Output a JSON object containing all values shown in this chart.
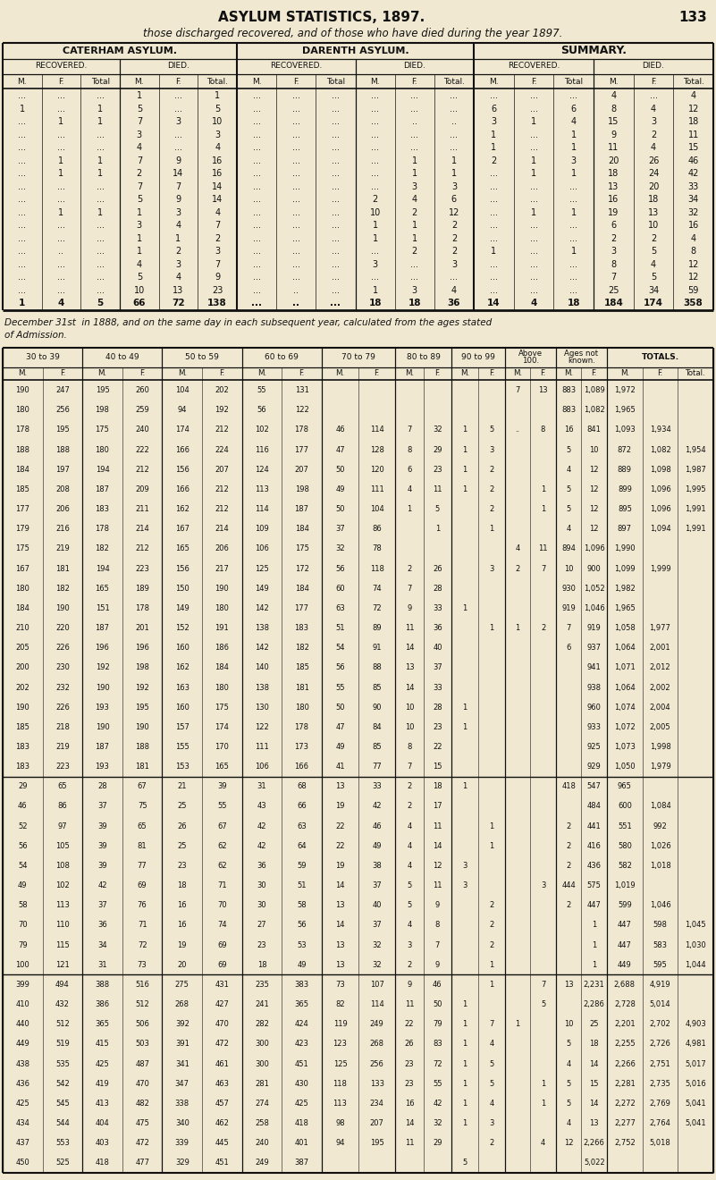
{
  "title": "ASYLUM STATISTICS, 1897.",
  "page_number": "133",
  "subtitle": "those discharged recovered, and of those who have died during the year 1897.",
  "section1_header": "CATERHAM ASYLUM.",
  "section2_header": "DARENTH ASYLUM.",
  "section3_header": "SUMMARY.",
  "top_table_rows": [
    [
      "...",
      "...",
      "...",
      "1",
      "...",
      "1",
      "...",
      "...",
      "...",
      "...",
      "...",
      "...",
      "...",
      "...",
      "...",
      "4",
      "...",
      "4"
    ],
    [
      "1",
      "...",
      "1",
      "5",
      "...",
      "5",
      "...",
      "...",
      "...",
      "...",
      "...",
      "...",
      "6",
      "...",
      "6",
      "8",
      "4",
      "12"
    ],
    [
      "...",
      "1",
      "1",
      "7",
      "3",
      "10",
      "...",
      "...",
      "...",
      "...",
      "..",
      "..",
      "3",
      "1",
      "4",
      "15",
      "3",
      "18"
    ],
    [
      "...",
      "...",
      "...",
      "3",
      "...",
      "3",
      "...",
      "...",
      "...",
      "...",
      "...",
      "...",
      "1",
      "...",
      "1",
      "9",
      "2",
      "11"
    ],
    [
      "...",
      "...",
      "...",
      "4",
      "...",
      "4",
      "...",
      "...",
      "...",
      "...",
      "...",
      "...",
      "1",
      "...",
      "1",
      "11",
      "4",
      "15"
    ],
    [
      "...",
      "1",
      "1",
      "7",
      "9",
      "16",
      "...",
      "...",
      "...",
      "...",
      "1",
      "1",
      "2",
      "1",
      "3",
      "20",
      "26",
      "46"
    ],
    [
      "...",
      "1",
      "1",
      "2",
      "14",
      "16",
      "...",
      "...",
      "...",
      "...",
      "1",
      "1",
      "...",
      "1",
      "1",
      "18",
      "24",
      "42"
    ],
    [
      "...",
      "...",
      "...",
      "7",
      "7",
      "14",
      "...",
      "...",
      "...",
      "...",
      "3",
      "3",
      "...",
      "...",
      "...",
      "13",
      "20",
      "33"
    ],
    [
      "...",
      "...",
      "...",
      "5",
      "9",
      "14",
      "...",
      "...",
      "...",
      "2",
      "4",
      "6",
      "...",
      "...",
      "...",
      "16",
      "18",
      "34"
    ],
    [
      "...",
      "1",
      "1",
      "1",
      "3",
      "4",
      "...",
      "...",
      "...",
      "10",
      "2",
      "12",
      "...",
      "1",
      "1",
      "19",
      "13",
      "32"
    ],
    [
      "...",
      "...",
      "...",
      "3",
      "4",
      "7",
      "...",
      "...",
      "...",
      "1",
      "1",
      "2",
      "...",
      "...",
      "...",
      "6",
      "10",
      "16"
    ],
    [
      "...",
      "...",
      "...",
      "1",
      "1",
      "2",
      "...",
      "...",
      "...",
      "1",
      "1",
      "2",
      "...",
      "...",
      "...",
      "2",
      "2",
      "4"
    ],
    [
      "...",
      "..",
      "...",
      "1",
      "2",
      "3",
      "...",
      "...",
      "...",
      "...",
      "2",
      "2",
      "1",
      "...",
      "1",
      "3",
      "5",
      "8"
    ],
    [
      "...",
      "...",
      "...",
      "4",
      "3",
      "7",
      "...",
      "...",
      "...",
      "3",
      "...",
      "3",
      "...",
      "...",
      "...",
      "8",
      "4",
      "12"
    ],
    [
      "...",
      "...",
      "...",
      "5",
      "4",
      "9",
      "...",
      "...",
      "...",
      "...",
      "...",
      "...",
      "...",
      "...",
      "...",
      "7",
      "5",
      "12"
    ],
    [
      "...",
      "...",
      "...",
      "10",
      "13",
      "23",
      "...",
      "..",
      "...",
      "1",
      "3",
      "4",
      "...",
      "...",
      "...",
      "25",
      "34",
      "59"
    ],
    [
      "1",
      "4",
      "5",
      "66",
      "72",
      "138",
      "...",
      "..",
      "...",
      "18",
      "18",
      "36",
      "14",
      "4",
      "18",
      "184",
      "174",
      "358"
    ]
  ],
  "middle_text_line1": "December 31st  in 1888, and on the same day in each subsequent year, calculated from the ages stated",
  "middle_text_line2": "of Admission.",
  "bottom_table_rows": [
    [
      "190",
      "247",
      "195",
      "260",
      "104",
      "202",
      "55",
      "131",
      "",
      "",
      "",
      "",
      "",
      "",
      "7",
      "13",
      "883",
      "1,089",
      "1,972"
    ],
    [
      "180",
      "256",
      "198",
      "259",
      "94",
      "192",
      "56",
      "122",
      "",
      "",
      "",
      "",
      "",
      "",
      "",
      "",
      "883",
      "1,082",
      "1,965"
    ],
    [
      "178",
      "195",
      "175",
      "240",
      "174",
      "212",
      "102",
      "178",
      "46",
      "114",
      "7",
      "32",
      "1",
      "5",
      "..",
      "8",
      "16",
      "841",
      "1,093",
      "1,934"
    ],
    [
      "188",
      "188",
      "180",
      "222",
      "166",
      "224",
      "116",
      "177",
      "47",
      "128",
      "8",
      "29",
      "1",
      "3",
      "",
      "",
      "5",
      "10",
      "872",
      "1,082",
      "1,954"
    ],
    [
      "184",
      "197",
      "194",
      "212",
      "156",
      "207",
      "124",
      "207",
      "50",
      "120",
      "6",
      "23",
      "1",
      "2",
      "",
      "",
      "4",
      "12",
      "889",
      "1,098",
      "1,987"
    ],
    [
      "185",
      "208",
      "187",
      "209",
      "166",
      "212",
      "113",
      "198",
      "49",
      "111",
      "4",
      "11",
      "1",
      "2",
      "",
      "1",
      "5",
      "12",
      "899",
      "1,096",
      "1,995"
    ],
    [
      "177",
      "206",
      "183",
      "211",
      "162",
      "212",
      "114",
      "187",
      "50",
      "104",
      "1",
      "5",
      "",
      "2",
      "",
      "1",
      "5",
      "12",
      "895",
      "1,096",
      "1,991"
    ],
    [
      "179",
      "216",
      "178",
      "214",
      "167",
      "214",
      "109",
      "184",
      "37",
      "86",
      "",
      "1",
      "",
      "1",
      "",
      "",
      "4",
      "12",
      "897",
      "1,094",
      "1,991"
    ],
    [
      "175",
      "219",
      "182",
      "212",
      "165",
      "206",
      "106",
      "175",
      "32",
      "78",
      "",
      "",
      "",
      "",
      "4",
      "11",
      "894",
      "1,096",
      "1,990"
    ],
    [
      "167",
      "181",
      "194",
      "223",
      "156",
      "217",
      "125",
      "172",
      "56",
      "118",
      "2",
      "26",
      "",
      "3",
      "2",
      "7",
      "10",
      "900",
      "1,099",
      "1,999"
    ],
    [
      "180",
      "182",
      "165",
      "189",
      "150",
      "190",
      "149",
      "184",
      "60",
      "74",
      "7",
      "28",
      "",
      "",
      "",
      "",
      "930",
      "1,052",
      "1,982"
    ],
    [
      "184",
      "190",
      "151",
      "178",
      "149",
      "180",
      "142",
      "177",
      "63",
      "72",
      "9",
      "33",
      "1",
      "",
      "",
      "",
      "919",
      "1,046",
      "1,965"
    ],
    [
      "210",
      "220",
      "187",
      "201",
      "152",
      "191",
      "138",
      "183",
      "51",
      "89",
      "11",
      "36",
      "",
      "1",
      "1",
      "2",
      "7",
      "919",
      "1,058",
      "1,977"
    ],
    [
      "205",
      "226",
      "196",
      "196",
      "160",
      "186",
      "142",
      "182",
      "54",
      "91",
      "14",
      "40",
      "",
      "",
      "",
      "",
      "6",
      "937",
      "1,064",
      "2,001"
    ],
    [
      "200",
      "230",
      "192",
      "198",
      "162",
      "184",
      "140",
      "185",
      "56",
      "88",
      "13",
      "37",
      "",
      "",
      "",
      "",
      "",
      "941",
      "1,071",
      "2,012"
    ],
    [
      "202",
      "232",
      "190",
      "192",
      "163",
      "180",
      "138",
      "181",
      "55",
      "85",
      "14",
      "33",
      "",
      "",
      "",
      "",
      "",
      "938",
      "1,064",
      "2,002"
    ],
    [
      "190",
      "226",
      "193",
      "195",
      "160",
      "175",
      "130",
      "180",
      "50",
      "90",
      "10",
      "28",
      "1",
      "",
      "",
      "",
      "",
      "960",
      "1,074",
      "2,004"
    ],
    [
      "185",
      "218",
      "190",
      "190",
      "157",
      "174",
      "122",
      "178",
      "47",
      "84",
      "10",
      "23",
      "1",
      "",
      "",
      "",
      "",
      "933",
      "1,072",
      "2,005"
    ],
    [
      "183",
      "219",
      "187",
      "188",
      "155",
      "170",
      "111",
      "173",
      "49",
      "85",
      "8",
      "22",
      "",
      "",
      "",
      "",
      "",
      "925",
      "1,073",
      "1,998"
    ],
    [
      "183",
      "223",
      "193",
      "181",
      "153",
      "165",
      "106",
      "166",
      "41",
      "77",
      "7",
      "15",
      "",
      "",
      "",
      "",
      "",
      "929",
      "1,050",
      "1,979"
    ],
    [
      "29",
      "65",
      "28",
      "67",
      "21",
      "39",
      "31",
      "68",
      "13",
      "33",
      "2",
      "18",
      "1",
      "",
      "",
      "",
      "418",
      "547",
      "965"
    ],
    [
      "46",
      "86",
      "37",
      "75",
      "25",
      "55",
      "43",
      "66",
      "19",
      "42",
      "2",
      "17",
      "",
      "",
      "",
      "",
      "",
      "484",
      "600",
      "1,084"
    ],
    [
      "52",
      "97",
      "39",
      "65",
      "26",
      "67",
      "42",
      "63",
      "22",
      "46",
      "4",
      "11",
      "",
      "1",
      "",
      "",
      "2",
      "441",
      "551",
      "992"
    ],
    [
      "56",
      "105",
      "39",
      "81",
      "25",
      "62",
      "42",
      "64",
      "22",
      "49",
      "4",
      "14",
      "",
      "1",
      "",
      "",
      "2",
      "416",
      "580",
      "1,026"
    ],
    [
      "54",
      "108",
      "39",
      "77",
      "23",
      "62",
      "36",
      "59",
      "19",
      "38",
      "4",
      "12",
      "3",
      "",
      "",
      "",
      "2",
      "436",
      "582",
      "1,018"
    ],
    [
      "49",
      "102",
      "42",
      "69",
      "18",
      "71",
      "30",
      "51",
      "14",
      "37",
      "5",
      "11",
      "3",
      "",
      "",
      "3",
      "444",
      "575",
      "1,019"
    ],
    [
      "58",
      "113",
      "37",
      "76",
      "16",
      "70",
      "30",
      "58",
      "13",
      "40",
      "5",
      "9",
      "",
      "2",
      "",
      "",
      "2",
      "447",
      "599",
      "1,046"
    ],
    [
      "70",
      "110",
      "36",
      "71",
      "16",
      "74",
      "27",
      "56",
      "14",
      "37",
      "4",
      "8",
      "",
      "2",
      "",
      "",
      "",
      "1",
      "447",
      "598",
      "1,045"
    ],
    [
      "79",
      "115",
      "34",
      "72",
      "19",
      "69",
      "23",
      "53",
      "13",
      "32",
      "3",
      "7",
      "",
      "2",
      "",
      "",
      "",
      "1",
      "447",
      "583",
      "1,030"
    ],
    [
      "100",
      "121",
      "31",
      "73",
      "20",
      "69",
      "18",
      "49",
      "13",
      "32",
      "2",
      "9",
      "",
      "1",
      "",
      "",
      "",
      "1",
      "449",
      "595",
      "1,044"
    ],
    [
      "399",
      "494",
      "388",
      "516",
      "275",
      "431",
      "235",
      "383",
      "73",
      "107",
      "9",
      "46",
      "",
      "1",
      "",
      "7",
      "13",
      "2,231",
      "2,688",
      "4,919"
    ],
    [
      "410",
      "432",
      "386",
      "512",
      "268",
      "427",
      "241",
      "365",
      "82",
      "114",
      "11",
      "50",
      "1",
      "",
      "",
      "5",
      "",
      "2,286",
      "2,728",
      "5,014"
    ],
    [
      "440",
      "512",
      "365",
      "506",
      "392",
      "470",
      "282",
      "424",
      "119",
      "249",
      "22",
      "79",
      "1",
      "7",
      "1",
      "",
      "10",
      "25",
      "2,201",
      "2,702",
      "4,903"
    ],
    [
      "449",
      "519",
      "415",
      "503",
      "391",
      "472",
      "300",
      "423",
      "123",
      "268",
      "26",
      "83",
      "1",
      "4",
      "",
      "",
      "5",
      "18",
      "2,255",
      "2,726",
      "4,981"
    ],
    [
      "438",
      "535",
      "425",
      "487",
      "341",
      "461",
      "300",
      "451",
      "125",
      "256",
      "23",
      "72",
      "1",
      "5",
      "",
      "",
      "4",
      "14",
      "2,266",
      "2,751",
      "5,017"
    ],
    [
      "436",
      "542",
      "419",
      "470",
      "347",
      "463",
      "281",
      "430",
      "118",
      "133",
      "23",
      "55",
      "1",
      "5",
      "",
      "1",
      "5",
      "15",
      "2,281",
      "2,735",
      "5,016"
    ],
    [
      "425",
      "545",
      "413",
      "482",
      "338",
      "457",
      "274",
      "425",
      "113",
      "234",
      "16",
      "42",
      "1",
      "4",
      "",
      "1",
      "5",
      "14",
      "2,272",
      "2,769",
      "5,041"
    ],
    [
      "434",
      "544",
      "404",
      "475",
      "340",
      "462",
      "258",
      "418",
      "98",
      "207",
      "14",
      "32",
      "1",
      "3",
      "",
      "",
      "4",
      "13",
      "2,277",
      "2,764",
      "5,041"
    ],
    [
      "437",
      "553",
      "403",
      "472",
      "339",
      "445",
      "240",
      "401",
      "94",
      "195",
      "11",
      "29",
      "",
      "2",
      "",
      "4",
      "12",
      "2,266",
      "2,752",
      "5,018"
    ],
    [
      "450",
      "525",
      "418",
      "477",
      "329",
      "451",
      "249",
      "387",
      "",
      "",
      "",
      "",
      "5",
      "",
      "",
      "",
      "",
      "5,022"
    ]
  ],
  "bg_color": "#f0e8d0",
  "text_color": "#111111",
  "line_color": "#111111"
}
